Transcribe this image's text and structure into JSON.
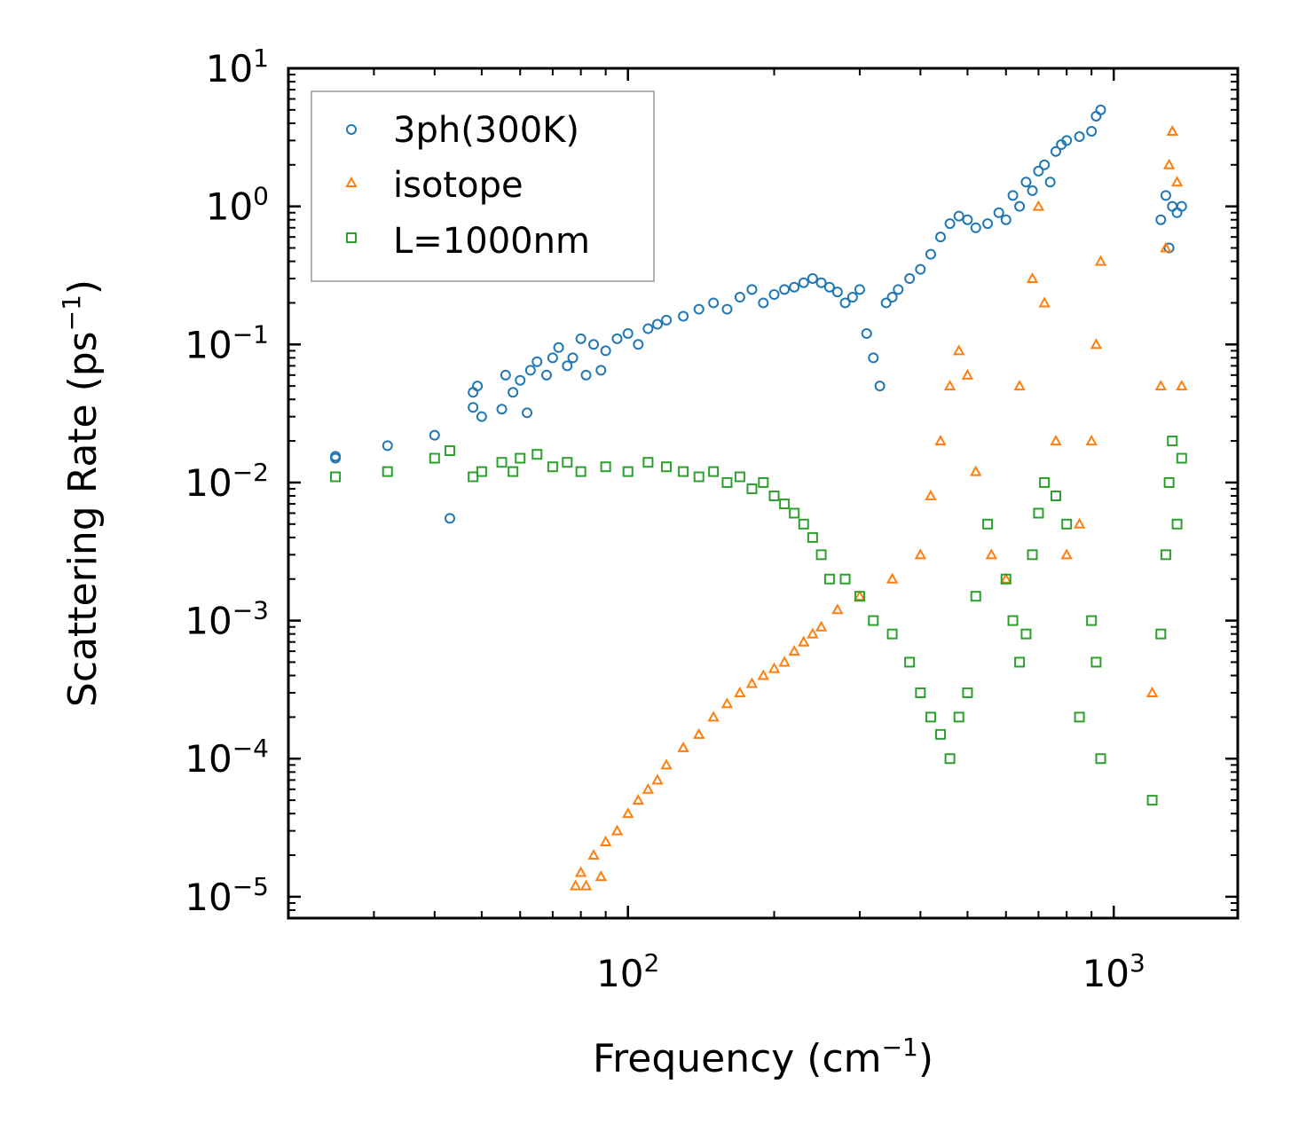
{
  "chart_data": {
    "type": "scatter",
    "xscale": "log",
    "yscale": "log",
    "xlim": [
      20,
      1800
    ],
    "ylim": [
      7e-06,
      10
    ],
    "xlabel": {
      "base": "Frequency (cm",
      "exp": "−1",
      "end": ")"
    },
    "ylabel": {
      "base": "Scattering Rate (ps",
      "exp": "−1",
      "end": ")"
    },
    "x_ticks": [
      {
        "value": 100,
        "base": "10",
        "exp": "2"
      },
      {
        "value": 1000,
        "base": "10",
        "exp": "3"
      }
    ],
    "y_ticks": [
      {
        "value": 10,
        "base": "10",
        "exp": "1"
      },
      {
        "value": 1,
        "base": "10",
        "exp": "0"
      },
      {
        "value": 0.1,
        "base": "10",
        "exp": "−1"
      },
      {
        "value": 0.01,
        "base": "10",
        "exp": "−2"
      },
      {
        "value": 0.001,
        "base": "10",
        "exp": "−3"
      },
      {
        "value": 0.0001,
        "base": "10",
        "exp": "−4"
      },
      {
        "value": 1e-05,
        "base": "10",
        "exp": "−5"
      }
    ],
    "legend_position": "top-left",
    "series": [
      {
        "name": "3ph(300K)",
        "marker": "circle",
        "color": "#1f77b4",
        "x": [
          25,
          25,
          32,
          40,
          43,
          48,
          48,
          49,
          50,
          55,
          56,
          58,
          60,
          62,
          63,
          65,
          68,
          70,
          72,
          75,
          77,
          80,
          82,
          85,
          88,
          90,
          95,
          100,
          105,
          110,
          115,
          120,
          130,
          140,
          150,
          160,
          170,
          180,
          190,
          200,
          210,
          220,
          230,
          240,
          250,
          260,
          270,
          280,
          290,
          300,
          310,
          320,
          330,
          340,
          350,
          360,
          380,
          400,
          420,
          440,
          460,
          480,
          500,
          520,
          550,
          580,
          600,
          620,
          640,
          660,
          680,
          700,
          720,
          740,
          760,
          780,
          800,
          850,
          900,
          920,
          940,
          1250,
          1280,
          1300,
          1320,
          1350,
          1380
        ],
        "y": [
          0.0155,
          0.015,
          0.0185,
          0.022,
          0.0055,
          0.045,
          0.035,
          0.05,
          0.03,
          0.034,
          0.06,
          0.045,
          0.055,
          0.032,
          0.065,
          0.075,
          0.06,
          0.08,
          0.095,
          0.07,
          0.08,
          0.11,
          0.06,
          0.1,
          0.065,
          0.09,
          0.11,
          0.12,
          0.1,
          0.13,
          0.14,
          0.15,
          0.16,
          0.18,
          0.2,
          0.18,
          0.22,
          0.25,
          0.2,
          0.23,
          0.25,
          0.26,
          0.28,
          0.3,
          0.28,
          0.26,
          0.24,
          0.2,
          0.22,
          0.25,
          0.12,
          0.08,
          0.05,
          0.2,
          0.22,
          0.25,
          0.3,
          0.35,
          0.45,
          0.6,
          0.75,
          0.85,
          0.8,
          0.7,
          0.75,
          0.9,
          0.8,
          1.2,
          1.0,
          1.5,
          1.3,
          1.8,
          2.0,
          1.5,
          2.5,
          2.8,
          3.0,
          3.2,
          3.5,
          4.5,
          5.0,
          0.8,
          1.2,
          0.5,
          1.0,
          0.9,
          1.0
        ]
      },
      {
        "name": "isotope",
        "marker": "triangle",
        "color": "#ff7f0e",
        "x": [
          78,
          80,
          82,
          85,
          88,
          90,
          95,
          100,
          105,
          110,
          115,
          120,
          130,
          140,
          150,
          160,
          170,
          180,
          190,
          200,
          210,
          220,
          230,
          240,
          250,
          270,
          300,
          350,
          400,
          420,
          440,
          460,
          480,
          500,
          520,
          560,
          600,
          640,
          680,
          700,
          720,
          760,
          800,
          850,
          900,
          920,
          940,
          1200,
          1250,
          1280,
          1300,
          1320,
          1350,
          1380
        ],
        "y": [
          1.2e-05,
          1.5e-05,
          1.2e-05,
          2e-05,
          1.4e-05,
          2.5e-05,
          3e-05,
          4e-05,
          5e-05,
          6e-05,
          7e-05,
          9e-05,
          0.00012,
          0.00015,
          0.0002,
          0.00025,
          0.0003,
          0.00035,
          0.0004,
          0.00045,
          0.0005,
          0.0006,
          0.0007,
          0.0008,
          0.0009,
          0.0012,
          0.0015,
          0.002,
          0.003,
          0.008,
          0.02,
          0.05,
          0.09,
          0.06,
          0.012,
          0.003,
          0.002,
          0.05,
          0.3,
          1.0,
          0.2,
          0.02,
          0.003,
          0.005,
          0.02,
          0.1,
          0.4,
          0.0003,
          0.05,
          0.5,
          2.0,
          3.5,
          1.5,
          0.05
        ]
      },
      {
        "name": "L=1000nm",
        "marker": "square",
        "color": "#2ca02c",
        "x": [
          25,
          32,
          40,
          43,
          48,
          50,
          55,
          58,
          60,
          65,
          70,
          75,
          80,
          90,
          100,
          110,
          120,
          130,
          140,
          150,
          160,
          170,
          180,
          190,
          200,
          210,
          220,
          230,
          240,
          250,
          260,
          280,
          300,
          320,
          350,
          380,
          400,
          420,
          440,
          460,
          480,
          500,
          520,
          550,
          600,
          620,
          640,
          660,
          680,
          700,
          720,
          760,
          800,
          850,
          900,
          920,
          940,
          1200,
          1250,
          1280,
          1300,
          1320,
          1350,
          1380
        ],
        "y": [
          0.011,
          0.012,
          0.015,
          0.017,
          0.011,
          0.012,
          0.014,
          0.012,
          0.015,
          0.016,
          0.013,
          0.014,
          0.012,
          0.013,
          0.012,
          0.014,
          0.013,
          0.012,
          0.011,
          0.012,
          0.01,
          0.011,
          0.009,
          0.01,
          0.008,
          0.007,
          0.006,
          0.005,
          0.004,
          0.003,
          0.002,
          0.002,
          0.0015,
          0.001,
          0.0008,
          0.0005,
          0.0003,
          0.0002,
          0.00015,
          0.0001,
          0.0002,
          0.0003,
          0.0015,
          0.005,
          0.002,
          0.001,
          0.0005,
          0.0008,
          0.003,
          0.006,
          0.01,
          0.008,
          0.005,
          0.0002,
          0.001,
          0.0005,
          0.0001,
          5e-05,
          0.0008,
          0.003,
          0.01,
          0.02,
          0.005,
          0.015
        ]
      }
    ]
  }
}
